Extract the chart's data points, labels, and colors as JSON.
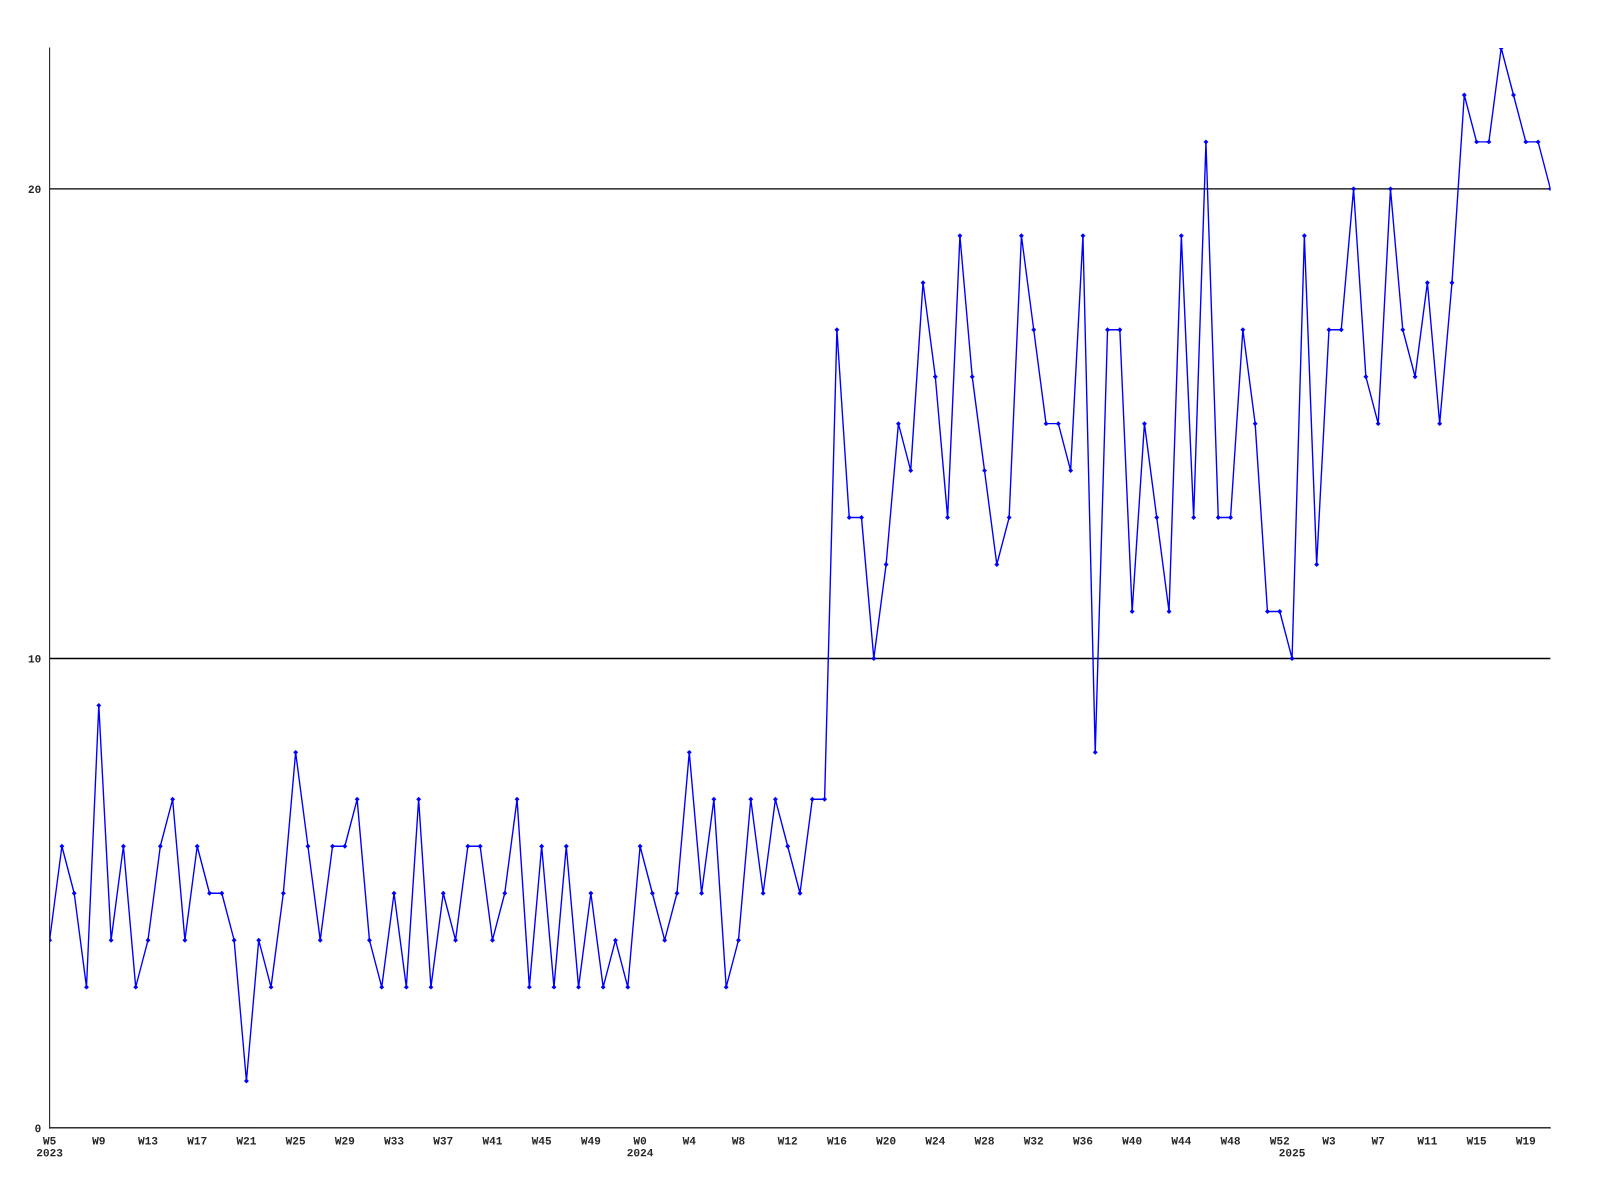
{
  "chart_data": {
    "type": "line",
    "categories": [
      "W5\n2023",
      null,
      null,
      null,
      "W9",
      null,
      null,
      null,
      "W13",
      null,
      null,
      null,
      "W17",
      null,
      null,
      null,
      "W21",
      null,
      null,
      null,
      "W25",
      null,
      null,
      null,
      "W29",
      null,
      null,
      null,
      "W33",
      null,
      null,
      null,
      "W37",
      null,
      null,
      null,
      "W41",
      null,
      null,
      null,
      "W45",
      null,
      null,
      null,
      "W49",
      null,
      null,
      null,
      "W0\n2024",
      null,
      null,
      null,
      "W4",
      null,
      null,
      null,
      "W8",
      null,
      null,
      null,
      "W12",
      null,
      null,
      null,
      "W16",
      null,
      null,
      null,
      "W20",
      null,
      null,
      null,
      "W24",
      null,
      null,
      null,
      "W28",
      null,
      null,
      null,
      "W32",
      null,
      null,
      null,
      "W36",
      null,
      null,
      null,
      "W40",
      null,
      null,
      null,
      "W44",
      null,
      null,
      null,
      "W48",
      null,
      null,
      null,
      "W52",
      "\n2025",
      null,
      null,
      "W3",
      null,
      null,
      null,
      "W7",
      null,
      null,
      null,
      "W11",
      null,
      null,
      null,
      "W15",
      null,
      null,
      null,
      "W19",
      null,
      null
    ],
    "series": [
      {
        "color": "#0000ff",
        "values": [
          4,
          6,
          5,
          3,
          9,
          4,
          6,
          3,
          4,
          6,
          7,
          4,
          6,
          5,
          5,
          4,
          1,
          4,
          3,
          5,
          8,
          6,
          4,
          6,
          6,
          7,
          4,
          3,
          5,
          3,
          7,
          3,
          5,
          4,
          6,
          6,
          4,
          5,
          7,
          3,
          6,
          3,
          6,
          3,
          5,
          3,
          4,
          3,
          6,
          5,
          4,
          5,
          8,
          5,
          7,
          3,
          4,
          7,
          5,
          7,
          6,
          5,
          7,
          7,
          17,
          13,
          13,
          10,
          12,
          15,
          14,
          18,
          16,
          13,
          19,
          16,
          14,
          12,
          13,
          19,
          17,
          15,
          15,
          14,
          19,
          8,
          17,
          17,
          11,
          15,
          13,
          11,
          19,
          13,
          21,
          13,
          13,
          17,
          15,
          11,
          11,
          10,
          19,
          12,
          17,
          17,
          20,
          16,
          15,
          20,
          17,
          16,
          18,
          15,
          18,
          22,
          21,
          21,
          23,
          22,
          21,
          21,
          20
        ]
      }
    ],
    "ylim": [
      0,
      23
    ],
    "yticks": [
      0,
      10,
      20
    ],
    "grid": "y",
    "marker": "diamond",
    "line_style": "solid"
  }
}
